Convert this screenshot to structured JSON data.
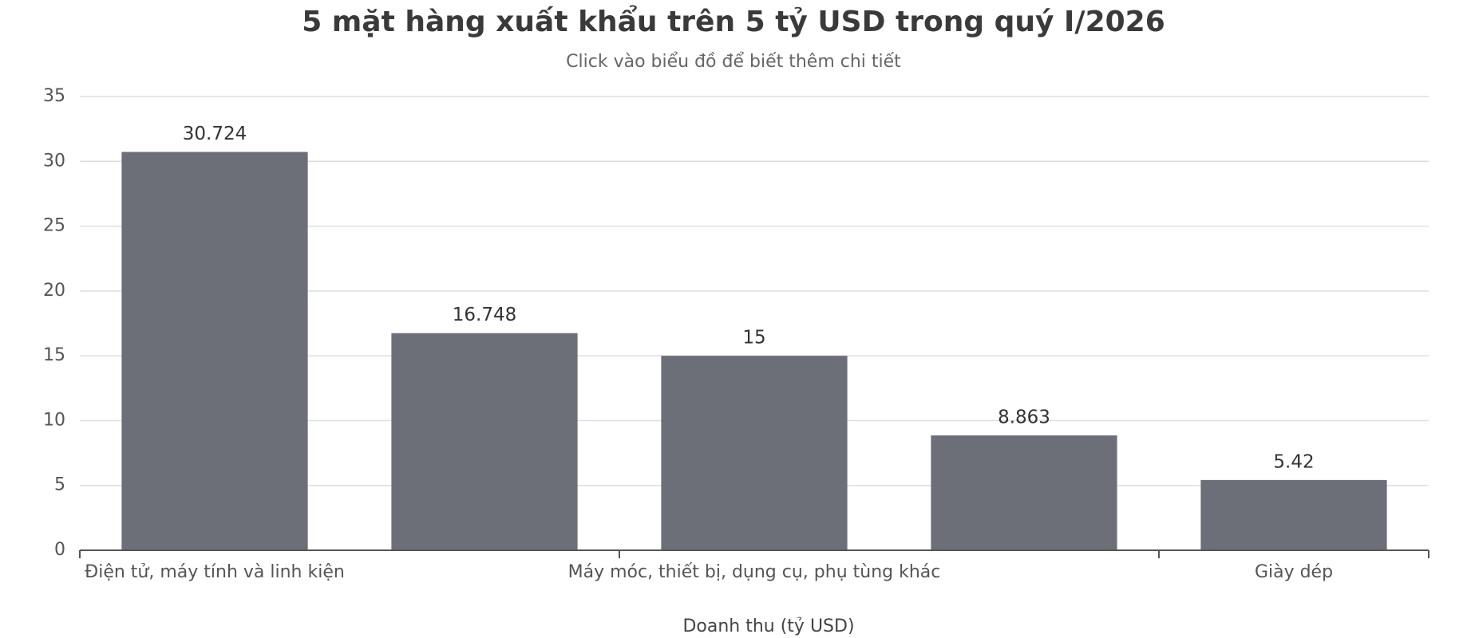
{
  "chart_data": {
    "type": "bar",
    "title": "5 mặt hàng xuất khẩu trên 5 tỷ USD trong quý I/2026",
    "subtitle": "Click vào biểu đồ để biết thêm chi tiết",
    "xlabel": "Doanh thu (tỷ USD)",
    "categories": [
      "Điện tử, máy tính và linh kiện",
      null,
      "Máy móc, thiết bị, dụng cụ, phụ tùng khác",
      null,
      "Giày dép"
    ],
    "values": [
      30.724,
      16.748,
      15,
      8.863,
      5.42
    ],
    "color": "#6d6f78",
    "ylim": [
      0,
      35
    ],
    "yticks": [
      0,
      5,
      10,
      15,
      20,
      25,
      30,
      35
    ],
    "grid": true
  }
}
